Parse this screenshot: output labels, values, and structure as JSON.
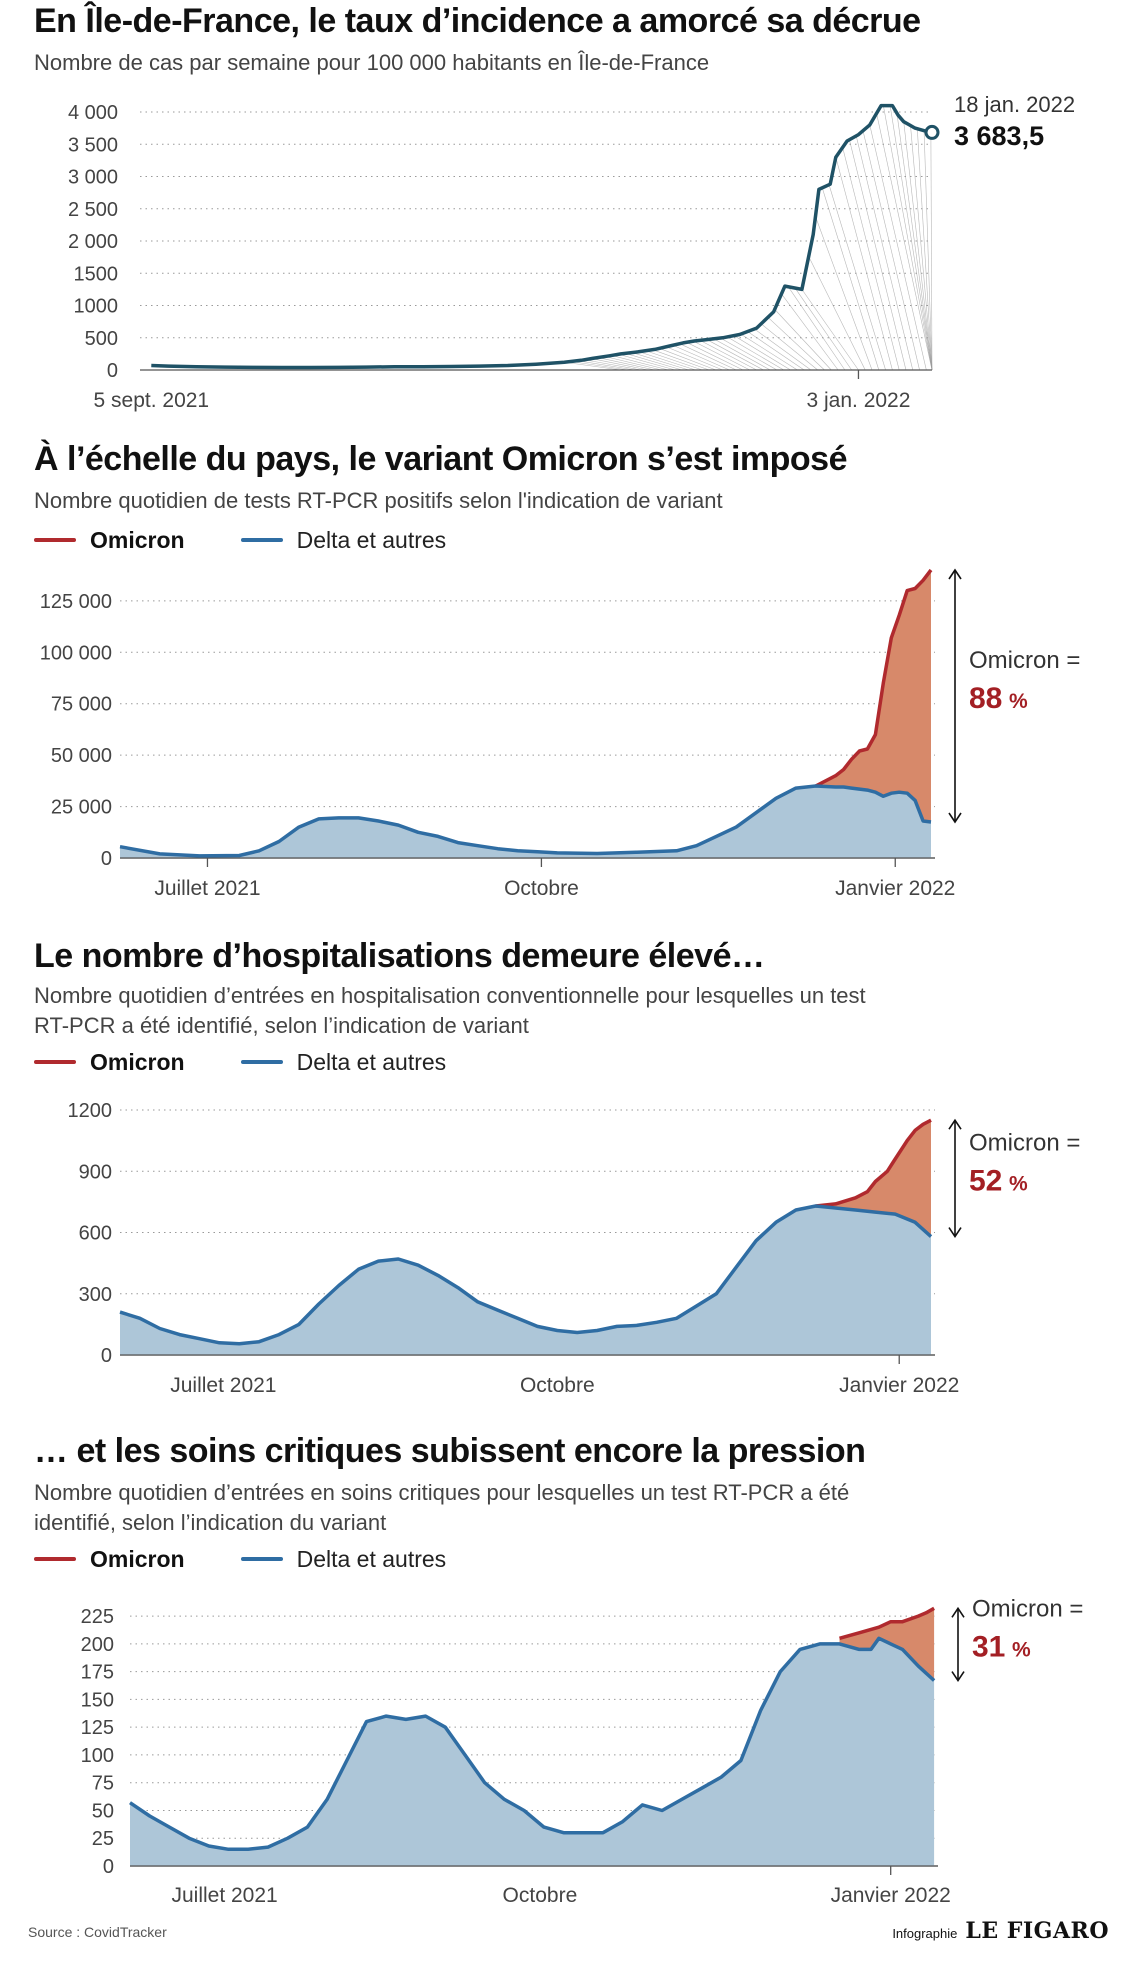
{
  "colors": {
    "omicron": "#b02a2e",
    "omicron_fill": "#d7896a",
    "delta": "#2f6da3",
    "delta_fill": "#adc6d8",
    "incidence": "#1f5266"
  },
  "legend": {
    "omicron": "Omicron",
    "delta": "Delta et autres"
  },
  "footer": {
    "source": "Source : CovidTracker",
    "brand_prefix": "Infographie",
    "brand_logo": "LE FIGARO"
  },
  "chart_data": [
    {
      "type": "line",
      "title": "En Île-de-France, le taux d’incidence a amorcé sa décrue",
      "subtitle": "Nombre de cas par semaine pour 100 000 habitants en Île-de-France",
      "ylim": [
        0,
        4000
      ],
      "y_ticks": [
        0,
        500,
        1000,
        1500,
        2000,
        2500,
        3000,
        3500,
        4000
      ],
      "y_tick_labels": [
        "0",
        "500",
        "1000",
        "1500",
        "2 000",
        "2 500",
        "3 000",
        "3 500",
        "4 000"
      ],
      "xlim": [
        0,
        140
      ],
      "x_tick_values": [
        2,
        127
      ],
      "x_tick_labels": [
        "5 sept. 2021",
        "3 jan. 2022"
      ],
      "x_tick_marks": [
        127
      ],
      "series": [
        {
          "x": [
            2,
            5,
            10,
            15,
            20,
            25,
            30,
            35,
            40,
            45,
            50,
            55,
            60,
            65,
            70,
            75,
            78,
            80,
            83,
            85,
            88,
            91,
            94,
            96,
            98,
            100,
            103,
            106,
            109,
            112,
            114,
            117,
            119,
            120,
            122,
            123,
            125,
            127,
            129,
            131,
            133,
            134,
            135,
            136,
            137,
            139,
            140
          ],
          "y": [
            70,
            60,
            50,
            45,
            40,
            38,
            38,
            40,
            45,
            50,
            50,
            55,
            60,
            70,
            90,
            120,
            150,
            180,
            220,
            250,
            280,
            320,
            380,
            420,
            450,
            470,
            500,
            550,
            650,
            900,
            1300,
            1250,
            2100,
            2800,
            2880,
            3300,
            3550,
            3650,
            3800,
            4100,
            4100,
            3950,
            3850,
            3800,
            3750,
            3700,
            3683.5
          ]
        }
      ],
      "highlight": {
        "date": "18 jan. 2022",
        "value": "3 683,5"
      }
    },
    {
      "type": "area",
      "title": "À l’échelle du pays, le variant Omicron s’est imposé",
      "subtitle": "Nombre quotidien de tests RT-PCR positifs selon l'indication de variant",
      "ylim": [
        0,
        140000
      ],
      "y_ticks": [
        0,
        25000,
        50000,
        75000,
        100000,
        125000
      ],
      "y_tick_labels": [
        "0",
        "25 000",
        "50 000",
        "75 000",
        "100 000",
        "125 000"
      ],
      "xlim": [
        0,
        205
      ],
      "x_tick_values": [
        22,
        106,
        195
      ],
      "x_tick_labels": [
        "Juillet 2021",
        "Octobre",
        "Janvier 2022"
      ],
      "x_tick_marks": [
        22,
        106,
        195
      ],
      "annotation": {
        "label": "Omicron =",
        "value": "88",
        "unit": "%"
      },
      "series": [
        {
          "name": "Delta et autres",
          "x": [
            0,
            10,
            20,
            30,
            35,
            40,
            45,
            50,
            55,
            60,
            65,
            70,
            75,
            80,
            85,
            90,
            95,
            100,
            105,
            110,
            120,
            130,
            140,
            145,
            150,
            155,
            160,
            165,
            170,
            175,
            180,
            182,
            184,
            186,
            188,
            190,
            192,
            194,
            196,
            198,
            200,
            202,
            204
          ],
          "y": [
            5500,
            2000,
            1000,
            1200,
            3500,
            8000,
            15000,
            19000,
            19500,
            19500,
            18000,
            16000,
            12500,
            10500,
            7500,
            6000,
            4500,
            3500,
            3000,
            2500,
            2200,
            2800,
            3500,
            6000,
            10500,
            15000,
            22000,
            29000,
            34000,
            35000,
            34500,
            34500,
            34000,
            33500,
            33000,
            32000,
            30000,
            31500,
            32000,
            31500,
            28000,
            18000,
            17500
          ]
        },
        {
          "name": "Omicron",
          "x": [
            175,
            180,
            182,
            184,
            186,
            188,
            190,
            192,
            194,
            196,
            198,
            200,
            202,
            204
          ],
          "y": [
            35000,
            40000,
            43000,
            48000,
            52000,
            53000,
            60000,
            85000,
            107000,
            118000,
            130000,
            131000,
            135000,
            140000
          ]
        }
      ]
    },
    {
      "type": "area",
      "title": "Le nombre d’hospitalisations demeure élevé…",
      "subtitle": "Nombre quotidien d’entrées en hospitalisation conventionnelle pour lesquelles un test RT-PCR a été identifié, selon l’indication de variant",
      "ylim": [
        0,
        1200
      ],
      "y_ticks": [
        0,
        300,
        600,
        900,
        1200
      ],
      "y_tick_labels": [
        "0",
        "300",
        "600",
        "900",
        "1200"
      ],
      "xlim": [
        0,
        205
      ],
      "x_tick_values": [
        26,
        110,
        196
      ],
      "x_tick_labels": [
        "Juillet 2021",
        "Octobre",
        "Janvier 2022"
      ],
      "x_tick_marks": [
        196
      ],
      "annotation": {
        "label": "Omicron =",
        "value": "52",
        "unit": "%"
      },
      "series": [
        {
          "name": "Delta et autres",
          "x": [
            0,
            5,
            10,
            15,
            20,
            25,
            30,
            35,
            40,
            45,
            50,
            55,
            60,
            65,
            70,
            75,
            80,
            85,
            90,
            95,
            100,
            105,
            110,
            115,
            120,
            125,
            130,
            135,
            140,
            145,
            150,
            155,
            160,
            165,
            170,
            175,
            180,
            185,
            190,
            195,
            200,
            204
          ],
          "y": [
            210,
            180,
            130,
            100,
            80,
            60,
            55,
            65,
            100,
            150,
            250,
            340,
            420,
            460,
            470,
            440,
            390,
            330,
            260,
            220,
            180,
            140,
            120,
            110,
            120,
            140,
            145,
            160,
            180,
            240,
            300,
            430,
            560,
            650,
            710,
            730,
            720,
            710,
            700,
            690,
            650,
            580
          ]
        },
        {
          "name": "Omicron",
          "x": [
            175,
            180,
            185,
            188,
            190,
            193,
            195,
            198,
            200,
            202,
            204
          ],
          "y": [
            730,
            740,
            770,
            800,
            850,
            900,
            960,
            1050,
            1100,
            1130,
            1150
          ]
        }
      ]
    },
    {
      "type": "area",
      "title": "… et les soins critiques subissent encore la pression",
      "subtitle": "Nombre quotidien d’entrées en soins critiques pour lesquelles un test RT-PCR a été identifié, selon l’indication du variant",
      "ylim": [
        0,
        235
      ],
      "y_ticks": [
        0,
        25,
        50,
        75,
        100,
        125,
        150,
        175,
        200,
        225
      ],
      "y_tick_labels": [
        "0",
        "25",
        "50",
        "75",
        "100",
        "125",
        "150",
        "175",
        "200",
        "225"
      ],
      "xlim": [
        0,
        205
      ],
      "x_tick_values": [
        24,
        104,
        193
      ],
      "x_tick_labels": [
        "Juillet 2021",
        "Octobre",
        "Janvier 2022"
      ],
      "x_tick_marks": [
        193
      ],
      "annotation": {
        "label": "Omicron =",
        "value": "31",
        "unit": "%"
      },
      "series": [
        {
          "name": "Delta et autres",
          "x": [
            0,
            5,
            10,
            15,
            20,
            25,
            30,
            35,
            40,
            45,
            50,
            55,
            60,
            65,
            70,
            75,
            80,
            85,
            90,
            95,
            100,
            105,
            110,
            115,
            120,
            125,
            130,
            135,
            140,
            145,
            150,
            155,
            160,
            165,
            170,
            175,
            180,
            185,
            188,
            190,
            193,
            196,
            200,
            204
          ],
          "y": [
            57,
            45,
            35,
            25,
            18,
            15,
            15,
            17,
            25,
            35,
            60,
            95,
            130,
            135,
            132,
            135,
            125,
            100,
            75,
            60,
            50,
            35,
            30,
            30,
            30,
            40,
            55,
            50,
            60,
            70,
            80,
            95,
            140,
            175,
            195,
            200,
            200,
            195,
            195,
            205,
            200,
            195,
            180,
            167
          ]
        },
        {
          "name": "Omicron",
          "x": [
            180,
            185,
            190,
            193,
            196,
            200,
            202,
            204
          ],
          "y": [
            205,
            210,
            215,
            220,
            220,
            225,
            228,
            232
          ]
        }
      ]
    }
  ]
}
